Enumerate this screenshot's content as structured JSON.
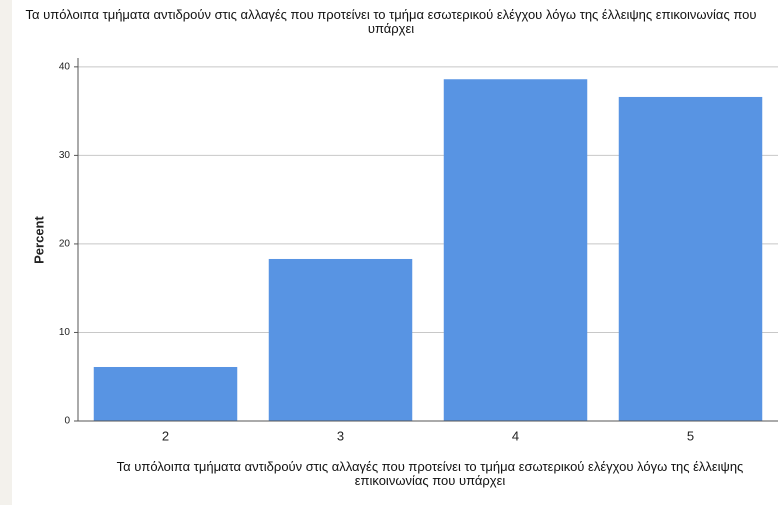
{
  "chart_data": {
    "type": "bar",
    "title": "Τα υπόλοιπα τμήματα αντιδρούν στις αλλαγές που προτείνει το τμήμα εσωτερικού ελέγχου λόγω της έλλειψης επικοινωνίας που υπάρχει",
    "x_label": "Τα υπόλοιπα τμήματα αντιδρούν στις αλλαγές που προτείνει το τμήμα εσωτερικού ελέγχου λόγω της έλλειψης επικοινωνίας που υπάρχει",
    "y_label": "Percent",
    "categories": [
      "2",
      "3",
      "4",
      "5"
    ],
    "values": [
      6.1,
      18.3,
      38.6,
      36.6
    ],
    "color": "#5894e3",
    "ylim": [
      0,
      41
    ],
    "yticks": [
      0,
      10,
      20,
      30,
      40
    ],
    "grid": true
  }
}
